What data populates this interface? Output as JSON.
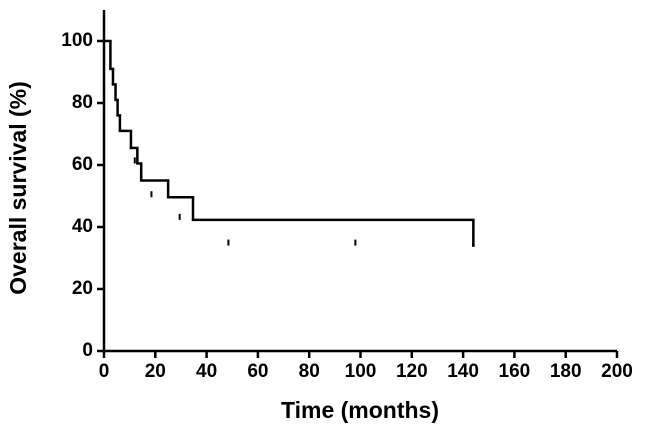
{
  "chart_data": {
    "type": "survival",
    "xlabel": "Time (months)",
    "ylabel": "Overall survival (%)",
    "series": [
      {
        "color": "#000000",
        "x": [
          0,
          2.5,
          3.5,
          4.5,
          5.3,
          6.2,
          10.5,
          13,
          14.5,
          25,
          34.7,
          144
        ],
        "values": [
          100,
          91,
          86,
          81,
          76,
          71,
          65.5,
          60.5,
          55,
          49.6,
          42.3,
          34
        ],
        "censored": {
          "x": [
            12,
            18.5,
            29.5,
            48.5,
            98,
            144
          ],
          "values": [
            60.5,
            49.6,
            42.3,
            34,
            34,
            34
          ]
        }
      }
    ],
    "xlim": [
      0,
      200
    ],
    "xticks": [
      0,
      20,
      40,
      60,
      80,
      100,
      120,
      140,
      160,
      180,
      200
    ],
    "ylim": [
      0,
      110
    ],
    "yticks": [
      0,
      20,
      40,
      60,
      80,
      100
    ]
  }
}
